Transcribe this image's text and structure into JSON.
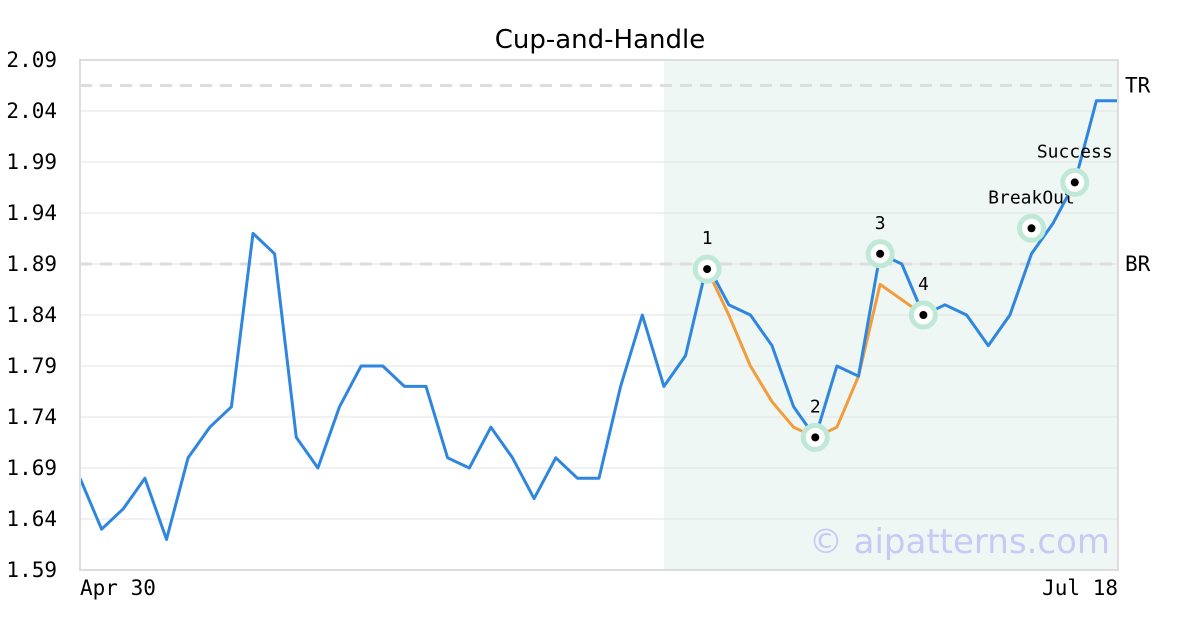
{
  "chart_data": {
    "type": "line",
    "title": "Cup-and-Handle",
    "xlabel": "",
    "ylabel": "",
    "x_start_label": "Apr 30",
    "x_end_label": "Jul 18",
    "ylim": [
      1.59,
      2.09
    ],
    "yticks": [
      "1.59",
      "1.64",
      "1.69",
      "1.74",
      "1.79",
      "1.84",
      "1.89",
      "1.94",
      "1.99",
      "2.04",
      "2.09"
    ],
    "grid": true,
    "series": [
      {
        "color": "#2e86de",
        "values": [
          1.68,
          1.63,
          1.65,
          1.68,
          1.62,
          1.7,
          1.73,
          1.75,
          1.92,
          1.9,
          1.72,
          1.69,
          1.75,
          1.79,
          1.79,
          1.77,
          1.77,
          1.7,
          1.69,
          1.73,
          1.7,
          1.66,
          1.7,
          1.68,
          1.68,
          1.77,
          1.84,
          1.77,
          1.8,
          1.89,
          1.85,
          1.84,
          1.81,
          1.75,
          1.72,
          1.79,
          1.78,
          1.9,
          1.89,
          1.84,
          1.85,
          1.84,
          1.81,
          1.84,
          1.9,
          1.93,
          1.97,
          2.05,
          2.05
        ]
      },
      {
        "color": "#f39c3d",
        "start_index": 29,
        "values": [
          1.885,
          1.84,
          1.79,
          1.755,
          1.73,
          1.72,
          1.73,
          1.78,
          1.87,
          1.855,
          1.84
        ]
      }
    ],
    "highlight_range": [
      27,
      48
    ],
    "reference_lines": [
      {
        "label": "TR",
        "value": 2.065
      },
      {
        "label": "BR",
        "value": 1.89
      }
    ],
    "points": [
      {
        "label": "1",
        "index": 29,
        "value": 1.885
      },
      {
        "label": "2",
        "index": 34,
        "value": 1.72
      },
      {
        "label": "3",
        "index": 37,
        "value": 1.9
      },
      {
        "label": "4",
        "index": 39,
        "value": 1.84
      },
      {
        "label": "BreakOut",
        "index": 44,
        "value": 1.925
      },
      {
        "label": "Success",
        "index": 46,
        "value": 1.97
      }
    ],
    "watermark": "© aipatterns.com",
    "colors": {
      "highlight": "#eef7f3",
      "marker_ring": "#bfe8d6",
      "grid": "#e3e3e3",
      "reference": "#dddddd",
      "frame": "#dddddd"
    }
  }
}
